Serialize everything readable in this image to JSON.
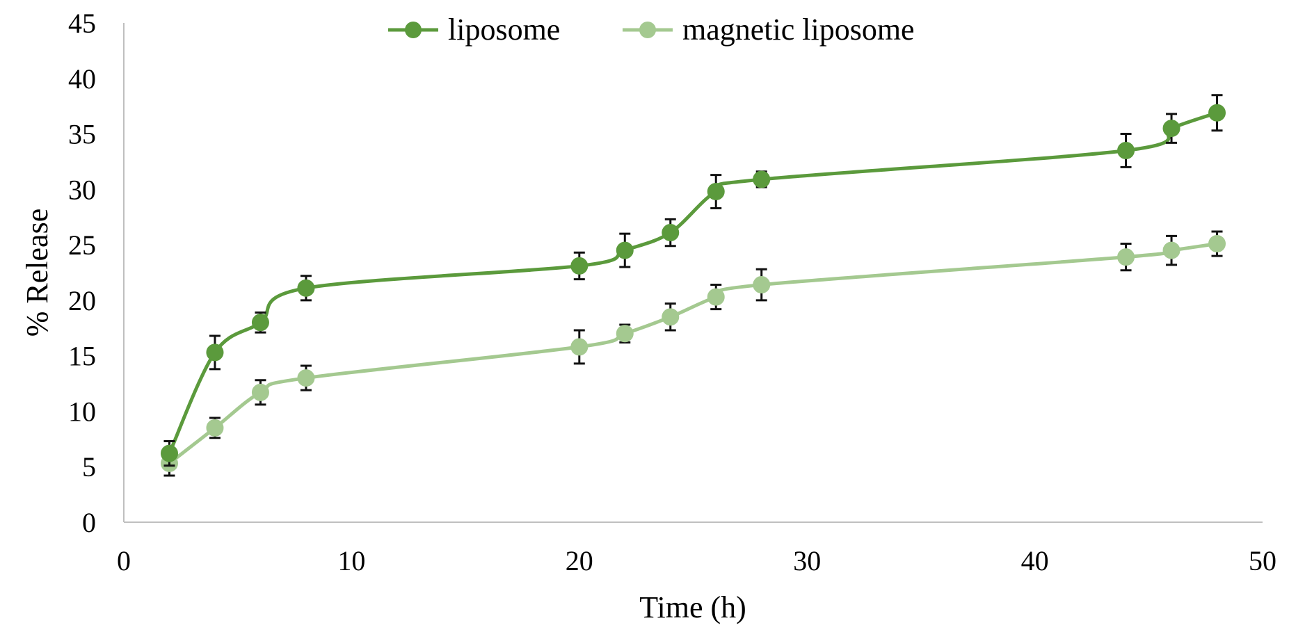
{
  "chart_data": {
    "type": "line",
    "title": "",
    "xlabel": "Time (h)",
    "ylabel": "% Release",
    "xlim": [
      0,
      50
    ],
    "ylim": [
      0,
      45
    ],
    "xticks": [
      0,
      10,
      20,
      30,
      40,
      50
    ],
    "yticks": [
      0,
      5,
      10,
      15,
      20,
      25,
      30,
      35,
      40,
      45
    ],
    "grid": false,
    "legend_position": "top-center",
    "x": [
      2,
      4,
      6,
      8,
      20,
      22,
      24,
      26,
      28,
      44,
      46,
      48
    ],
    "series": [
      {
        "name": "liposome",
        "color": "#5b9a3c",
        "values": [
          6.2,
          15.3,
          18.0,
          21.1,
          23.1,
          24.5,
          26.1,
          29.8,
          30.9,
          33.5,
          35.5,
          36.9
        ],
        "errors": [
          1.1,
          1.5,
          0.9,
          1.1,
          1.2,
          1.5,
          1.2,
          1.5,
          0.7,
          1.5,
          1.3,
          1.6
        ]
      },
      {
        "name": "magnetic liposome",
        "color": "#a4c990",
        "values": [
          5.3,
          8.5,
          11.7,
          13.0,
          15.8,
          17.0,
          18.5,
          20.3,
          21.4,
          23.9,
          24.5,
          25.1
        ],
        "errors": [
          1.1,
          0.9,
          1.1,
          1.1,
          1.5,
          0.8,
          1.2,
          1.1,
          1.4,
          1.2,
          1.3,
          1.1
        ]
      }
    ]
  }
}
